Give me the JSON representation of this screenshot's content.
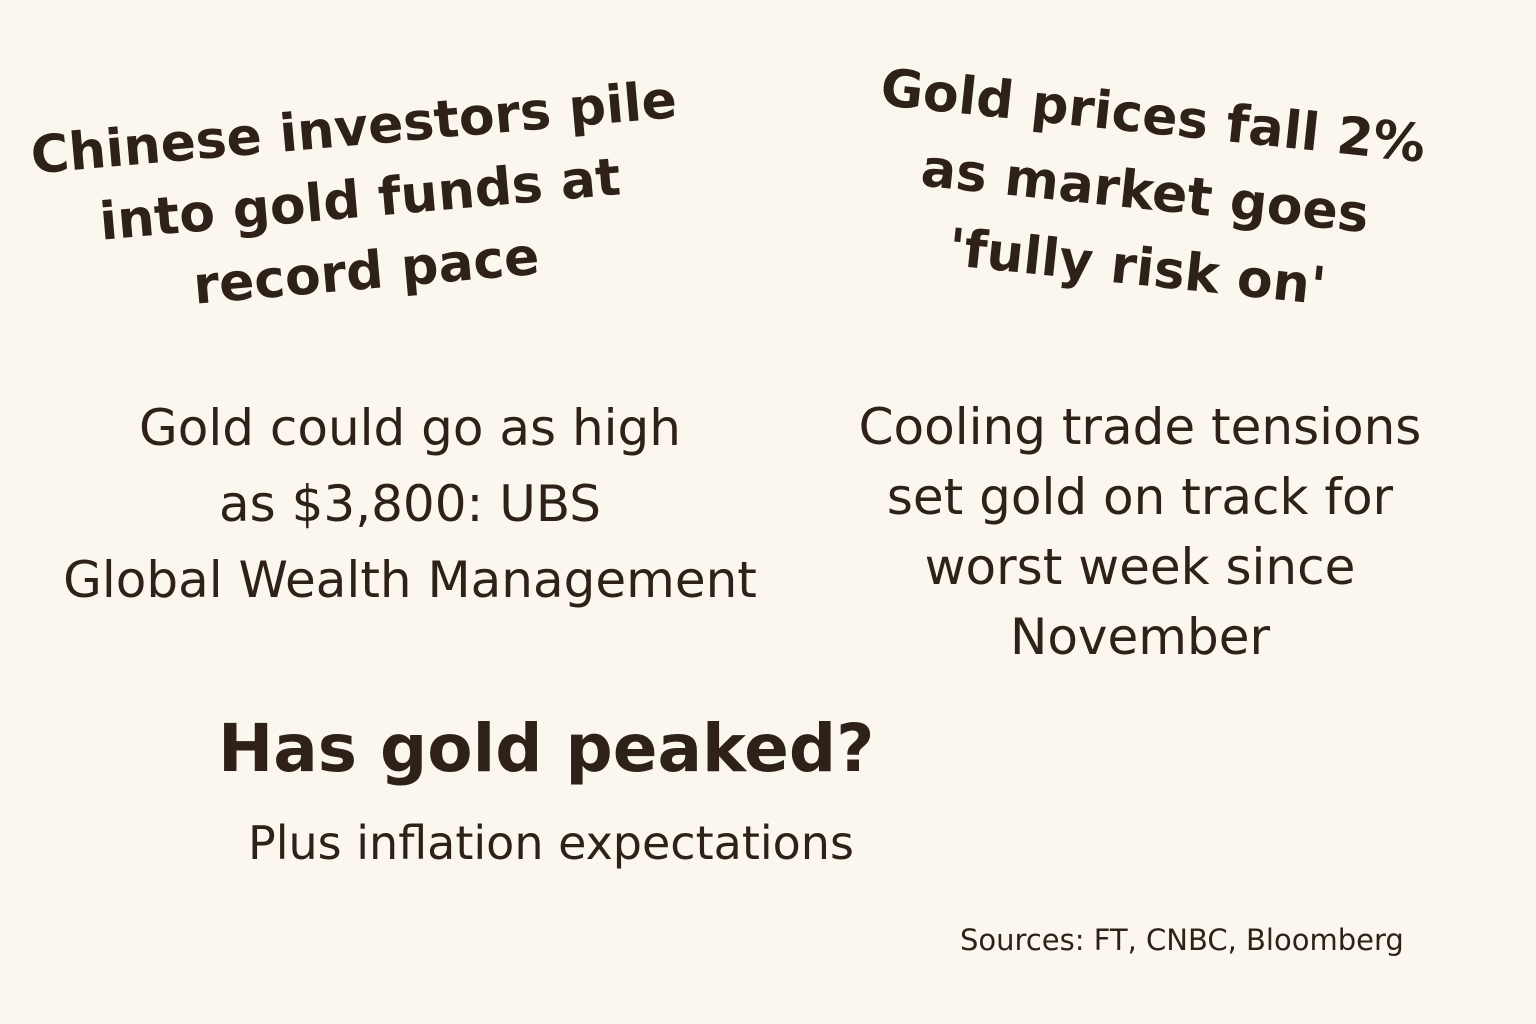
{
  "headlines": {
    "chinese_investors": "Chinese investors pile\ninto gold funds at\nrecord pace",
    "gold_prices_fall": "Gold prices fall 2%\nas market goes\n'fully risk on'",
    "ubs_forecast": "Gold could go as high\nas $3,800: UBS\nGlobal Wealth Management",
    "cooling_trade": "Cooling trade tensions\nset gold on track for\nworst week since\nNovember"
  },
  "main": {
    "title": "Has gold peaked?",
    "subtitle": "Plus inflation expectations"
  },
  "footer": {
    "sources": "Sources: FT, CNBC, Bloomberg"
  },
  "colors": {
    "background": "#fbf7ee",
    "text": "#2e2118"
  }
}
